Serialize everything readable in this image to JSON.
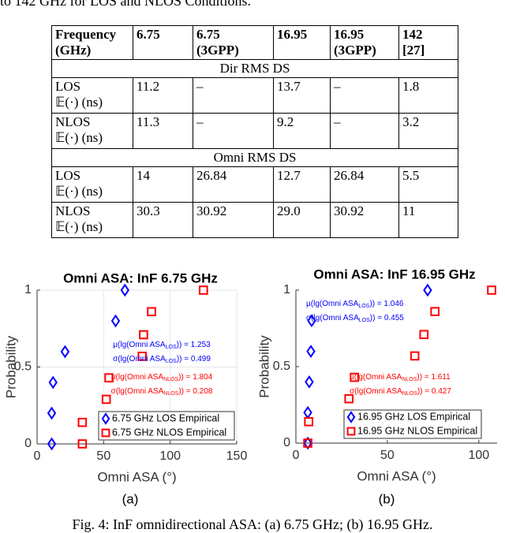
{
  "intro": "to 142 GHz for LOS and NLOS Conditions.",
  "table": {
    "header": [
      [
        "Frequency",
        "(GHz)"
      ],
      [
        "6.75"
      ],
      [
        "6.75",
        "(3GPP)"
      ],
      [
        "16.95"
      ],
      [
        "16.95",
        "(3GPP)"
      ],
      [
        "142",
        "[27]"
      ]
    ],
    "rows": [
      {
        "section": "Dir RMS DS"
      },
      {
        "label": [
          "LOS",
          "𝔼(·) (ns)"
        ],
        "cells": [
          "11.2",
          "–",
          "13.7",
          "–",
          "1.8"
        ]
      },
      {
        "label": [
          "NLOS",
          "𝔼(·) (ns)"
        ],
        "cells": [
          "11.3",
          "–",
          "9.2",
          "–",
          "3.2"
        ]
      },
      {
        "section": "Omni RMS DS"
      },
      {
        "label": [
          "LOS",
          "𝔼(·) (ns)"
        ],
        "cells": [
          "14",
          "26.84",
          "12.7",
          "26.84",
          "5.5"
        ]
      },
      {
        "label": [
          "NLOS",
          "𝔼(·) (ns)"
        ],
        "cells": [
          "30.3",
          "30.92",
          "29.0",
          "30.92",
          "11"
        ]
      }
    ]
  },
  "chart_data": [
    {
      "type": "scatter",
      "title": "Omni ASA: InF 6.75 GHz",
      "x_label": "Omni ASA (°)",
      "y_label": "Probability",
      "xlim": [
        0,
        150
      ],
      "xticks": [
        0,
        50,
        100,
        150
      ],
      "ylim": [
        0,
        1
      ],
      "yticks": [
        0,
        0.5,
        1
      ],
      "grid": true,
      "legend": "lower right",
      "series": [
        {
          "name": "6.75 GHz LOS Empirical",
          "color": "#0000ff",
          "marker": "diamond",
          "x": [
            11,
            11,
            12,
            21,
            59,
            66
          ],
          "y": [
            0,
            0.2,
            0.4,
            0.6,
            0.8,
            1
          ]
        },
        {
          "name": "6.75 GHz NLOS Empirical",
          "color": "#ff0000",
          "marker": "square",
          "x": [
            34,
            34,
            52,
            54,
            79,
            80,
            86,
            125
          ],
          "y": [
            0,
            0.14,
            0.29,
            0.43,
            0.57,
            0.71,
            0.86,
            1
          ]
        }
      ],
      "annotations": [
        {
          "text": "μ(lg(Omni ASA",
          "sub": "LOS",
          "tail": ")) = 1.253",
          "color": "#0000ff"
        },
        {
          "text": "σ(lg(Omni ASA",
          "sub": "LOS",
          "tail": ")) = 0.499",
          "color": "#0000ff"
        },
        {
          "text": "μ(lg(Omni ASA",
          "sub": "NLOS",
          "tail": ")) = 1.804",
          "color": "#ff0000"
        },
        {
          "text": "σ(lg(Omni ASA",
          "sub": "NLOS",
          "tail": ")) = 0.208",
          "color": "#ff0000"
        }
      ],
      "subcaption": "(a)"
    },
    {
      "type": "scatter",
      "title": "Omni ASA: InF 16.95 GHz",
      "x_label": "Omni ASA (°)",
      "y_label": "Probability",
      "xlim": [
        0,
        110
      ],
      "xticks": [
        0,
        50,
        100
      ],
      "ylim": [
        0,
        1
      ],
      "yticks": [
        0,
        0.5,
        1
      ],
      "grid": false,
      "legend": "lower right",
      "series": [
        {
          "name": "16.95 GHz LOS Empirical",
          "color": "#0000ff",
          "marker": "diamond",
          "x": [
            6.5,
            6.5,
            7.3,
            8.2,
            8.6,
            72
          ],
          "y": [
            0,
            0.2,
            0.4,
            0.6,
            0.8,
            1
          ]
        },
        {
          "name": "16.95 GHz NLOS Empirical",
          "color": "#ff0000",
          "marker": "square",
          "x": [
            6.5,
            7,
            29,
            32,
            65,
            70,
            76,
            107
          ],
          "y": [
            0,
            0.14,
            0.29,
            0.43,
            0.57,
            0.71,
            0.86,
            1
          ]
        }
      ],
      "annotations": [
        {
          "text": "μ(lg(Omni ASA",
          "sub": "LOS",
          "tail": ")) = 1.046",
          "color": "#0000ff"
        },
        {
          "text": "σ(lg(Omni ASA",
          "sub": "LOS",
          "tail": ")) = 0.455",
          "color": "#0000ff"
        },
        {
          "text": "μ(lg(Omni ASA",
          "sub": "NLOS",
          "tail": ")) = 1.611",
          "color": "#ff0000"
        },
        {
          "text": "σ(lg(Omni ASA",
          "sub": "NLOS",
          "tail": ")) = 0.427",
          "color": "#ff0000"
        }
      ],
      "subcaption": "(b)"
    }
  ],
  "caption": "Fig. 4: InF omnidirectional ASA: (a) 6.75 GHz; (b) 16.95 GHz."
}
